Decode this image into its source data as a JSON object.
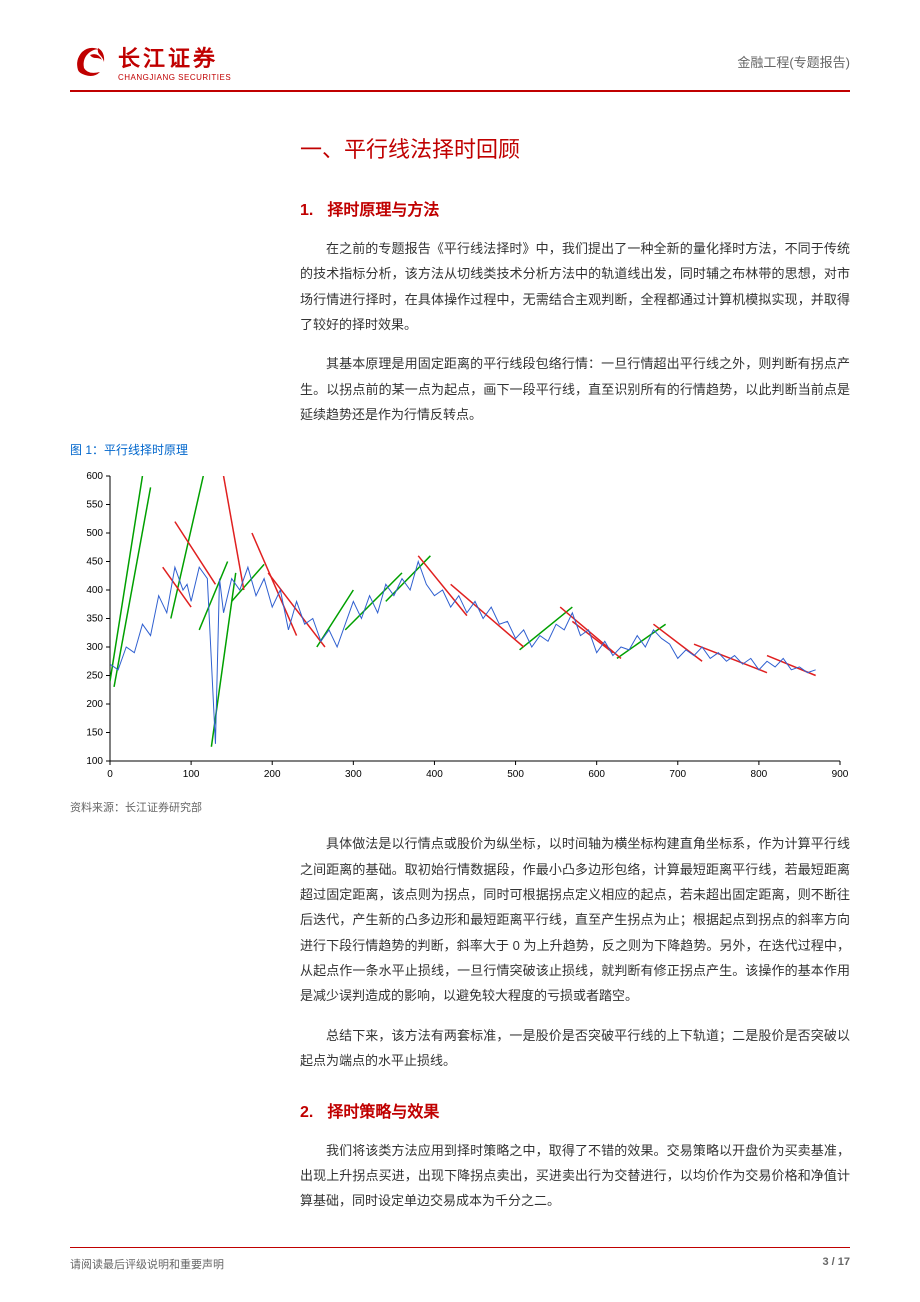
{
  "header": {
    "logo_cn": "长江证券",
    "logo_en": "CHANGJIANG SECURITIES",
    "category": "金融工程(专题报告)"
  },
  "title": "一、平行线法择时回顾",
  "sections": [
    {
      "num": "1.",
      "heading": "择时原理与方法",
      "paragraphs": [
        "在之前的专题报告《平行线法择时》中，我们提出了一种全新的量化择时方法，不同于传统的技术指标分析，该方法从切线类技术分析方法中的轨道线出发，同时辅之布林带的思想，对市场行情进行择时，在具体操作过程中，无需结合主观判断，全程都通过计算机模拟实现，并取得了较好的择时效果。",
        "其基本原理是用固定距离的平行线段包络行情：一旦行情超出平行线之外，则判断有拐点产生。以拐点前的某一点为起点，画下一段平行线，直至识别所有的行情趋势，以此判断当前点是延续趋势还是作为行情反转点。"
      ]
    },
    {
      "num": "2.",
      "heading": "择时策略与效果",
      "paragraphs": [
        "我们将该类方法应用到择时策略之中，取得了不错的效果。交易策略以开盘价为买卖基准，出现上升拐点买进，出现下降拐点卖出，买进卖出行为交替进行，以均价作为交易价格和净值计算基础，同时设定单边交易成本为千分之二。"
      ]
    }
  ],
  "after_chart_paragraphs": [
    "具体做法是以行情点或股价为纵坐标，以时间轴为横坐标构建直角坐标系，作为计算平行线之间距离的基础。取初始行情数据段，作最小凸多边形包络，计算最短距离平行线，若最短距离超过固定距离，该点则为拐点，同时可根据拐点定义相应的起点，若未超出固定距离，则不断往后迭代，产生新的凸多边形和最短距离平行线，直至产生拐点为止；根据起点到拐点的斜率方向进行下段行情趋势的判断，斜率大于 0 为上升趋势，反之则为下降趋势。另外，在迭代过程中，从起点作一条水平止损线，一旦行情突破该止损线，就判断有修正拐点产生。该操作的基本作用是减少误判造成的影响，以避免较大程度的亏损或者踏空。",
    "总结下来，该方法有两套标准，一是股价是否突破平行线的上下轨道；二是股价是否突破以起点为端点的水平止损线。"
  ],
  "figure": {
    "title": "图 1：平行线择时原理",
    "source": "资料来源：长江证券研究部",
    "chart": {
      "type": "line",
      "xlim": [
        0,
        900
      ],
      "ylim": [
        100,
        600
      ],
      "xtick_step": 100,
      "ytick_step": 50,
      "axis_color": "#000000",
      "tick_fontsize": 10,
      "background_color": "#ffffff",
      "price_color": "#3060d0",
      "up_line_color": "#00a000",
      "down_line_color": "#e02020",
      "line_width_price": 1,
      "line_width_signal": 1.5,
      "price_data": [
        [
          0,
          270
        ],
        [
          10,
          260
        ],
        [
          20,
          300
        ],
        [
          30,
          290
        ],
        [
          40,
          340
        ],
        [
          50,
          320
        ],
        [
          60,
          390
        ],
        [
          70,
          360
        ],
        [
          80,
          440
        ],
        [
          90,
          400
        ],
        [
          95,
          410
        ],
        [
          100,
          380
        ],
        [
          110,
          440
        ],
        [
          120,
          420
        ],
        [
          130,
          130
        ],
        [
          135,
          420
        ],
        [
          140,
          360
        ],
        [
          150,
          420
        ],
        [
          160,
          400
        ],
        [
          170,
          440
        ],
        [
          180,
          390
        ],
        [
          190,
          420
        ],
        [
          200,
          370
        ],
        [
          210,
          400
        ],
        [
          220,
          330
        ],
        [
          230,
          380
        ],
        [
          240,
          340
        ],
        [
          250,
          350
        ],
        [
          260,
          310
        ],
        [
          270,
          330
        ],
        [
          280,
          300
        ],
        [
          290,
          340
        ],
        [
          300,
          380
        ],
        [
          310,
          350
        ],
        [
          320,
          390
        ],
        [
          330,
          360
        ],
        [
          340,
          410
        ],
        [
          350,
          390
        ],
        [
          360,
          420
        ],
        [
          370,
          400
        ],
        [
          380,
          450
        ],
        [
          390,
          410
        ],
        [
          400,
          390
        ],
        [
          410,
          400
        ],
        [
          420,
          370
        ],
        [
          430,
          390
        ],
        [
          440,
          360
        ],
        [
          450,
          380
        ],
        [
          460,
          350
        ],
        [
          470,
          370
        ],
        [
          480,
          340
        ],
        [
          490,
          345
        ],
        [
          500,
          315
        ],
        [
          510,
          330
        ],
        [
          520,
          300
        ],
        [
          530,
          320
        ],
        [
          540,
          310
        ],
        [
          550,
          340
        ],
        [
          560,
          330
        ],
        [
          570,
          360
        ],
        [
          580,
          320
        ],
        [
          590,
          330
        ],
        [
          600,
          290
        ],
        [
          610,
          310
        ],
        [
          620,
          285
        ],
        [
          630,
          300
        ],
        [
          640,
          295
        ],
        [
          650,
          320
        ],
        [
          660,
          300
        ],
        [
          670,
          330
        ],
        [
          680,
          315
        ],
        [
          690,
          305
        ],
        [
          700,
          280
        ],
        [
          710,
          295
        ],
        [
          720,
          285
        ],
        [
          730,
          300
        ],
        [
          740,
          280
        ],
        [
          750,
          290
        ],
        [
          760,
          275
        ],
        [
          770,
          285
        ],
        [
          780,
          270
        ],
        [
          790,
          280
        ],
        [
          800,
          260
        ],
        [
          810,
          275
        ],
        [
          820,
          265
        ],
        [
          830,
          280
        ],
        [
          840,
          260
        ],
        [
          850,
          265
        ],
        [
          860,
          255
        ],
        [
          870,
          260
        ]
      ],
      "up_segments": [
        [
          [
            0,
            240
          ],
          [
            40,
            600
          ]
        ],
        [
          [
            5,
            230
          ],
          [
            50,
            580
          ]
        ],
        [
          [
            75,
            350
          ],
          [
            115,
            600
          ]
        ],
        [
          [
            110,
            330
          ],
          [
            145,
            450
          ]
        ],
        [
          [
            125,
            125
          ],
          [
            155,
            430
          ]
        ],
        [
          [
            150,
            380
          ],
          [
            190,
            445
          ]
        ],
        [
          [
            255,
            300
          ],
          [
            300,
            400
          ]
        ],
        [
          [
            290,
            330
          ],
          [
            360,
            430
          ]
        ],
        [
          [
            340,
            380
          ],
          [
            395,
            460
          ]
        ],
        [
          [
            505,
            295
          ],
          [
            570,
            370
          ]
        ],
        [
          [
            625,
            280
          ],
          [
            685,
            340
          ]
        ]
      ],
      "down_segments": [
        [
          [
            65,
            440
          ],
          [
            100,
            370
          ]
        ],
        [
          [
            80,
            520
          ],
          [
            130,
            410
          ]
        ],
        [
          [
            140,
            600
          ],
          [
            165,
            400
          ]
        ],
        [
          [
            175,
            500
          ],
          [
            230,
            320
          ]
        ],
        [
          [
            195,
            430
          ],
          [
            265,
            300
          ]
        ],
        [
          [
            380,
            460
          ],
          [
            440,
            355
          ]
        ],
        [
          [
            420,
            410
          ],
          [
            510,
            300
          ]
        ],
        [
          [
            555,
            370
          ],
          [
            630,
            280
          ]
        ],
        [
          [
            570,
            345
          ],
          [
            620,
            290
          ]
        ],
        [
          [
            670,
            340
          ],
          [
            730,
            275
          ]
        ],
        [
          [
            720,
            305
          ],
          [
            810,
            255
          ]
        ],
        [
          [
            810,
            285
          ],
          [
            870,
            250
          ]
        ]
      ]
    }
  },
  "footer": {
    "notice": "请阅读最后评级说明和重要声明",
    "page": "3 / 17"
  }
}
